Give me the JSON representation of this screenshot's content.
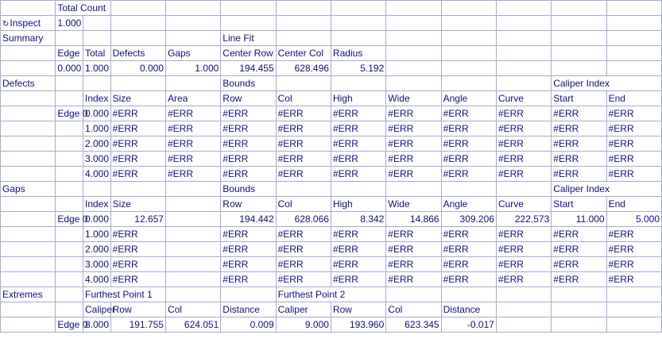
{
  "colors": {
    "text": "#10107a",
    "grid": "#a9a9d2"
  },
  "inspect_icon": "refresh-icon",
  "rows": [
    [
      "",
      "Total Count",
      "",
      "",
      "",
      "",
      "",
      "",
      "",
      "",
      "",
      "",
      ""
    ],
    [
      "Inspect",
      "1.000",
      "",
      "",
      "",
      "",
      "",
      "",
      "",
      "",
      "",
      "",
      ""
    ],
    [
      "Summary",
      "",
      "",
      "",
      "",
      "Line Fit",
      "",
      "",
      "",
      "",
      "",
      "",
      ""
    ],
    [
      "",
      "Edge",
      "Total",
      "Defects",
      "Gaps",
      "Center Row",
      "Center Col",
      "Radius",
      "",
      "",
      "",
      "",
      ""
    ],
    [
      "",
      "0.000",
      "1.000",
      "0.000",
      "1.000",
      "194.455",
      "628.496",
      "5.192",
      "",
      "",
      "",
      "",
      ""
    ],
    [
      "Defects",
      "",
      "",
      "",
      "",
      "Bounds",
      "",
      "",
      "",
      "",
      "",
      "Caliper Index",
      ""
    ],
    [
      "",
      "",
      "Index",
      "Size",
      "Area",
      "Row",
      "Col",
      "High",
      "Wide",
      "Angle",
      "Curve",
      "Start",
      "End"
    ],
    [
      "",
      "Edge 0",
      "0.000",
      "#ERR",
      "#ERR",
      "#ERR",
      "#ERR",
      "#ERR",
      "#ERR",
      "#ERR",
      "#ERR",
      "#ERR",
      "#ERR"
    ],
    [
      "",
      "",
      "1.000",
      "#ERR",
      "#ERR",
      "#ERR",
      "#ERR",
      "#ERR",
      "#ERR",
      "#ERR",
      "#ERR",
      "#ERR",
      "#ERR"
    ],
    [
      "",
      "",
      "2.000",
      "#ERR",
      "#ERR",
      "#ERR",
      "#ERR",
      "#ERR",
      "#ERR",
      "#ERR",
      "#ERR",
      "#ERR",
      "#ERR"
    ],
    [
      "",
      "",
      "3.000",
      "#ERR",
      "#ERR",
      "#ERR",
      "#ERR",
      "#ERR",
      "#ERR",
      "#ERR",
      "#ERR",
      "#ERR",
      "#ERR"
    ],
    [
      "",
      "",
      "4.000",
      "#ERR",
      "#ERR",
      "#ERR",
      "#ERR",
      "#ERR",
      "#ERR",
      "#ERR",
      "#ERR",
      "#ERR",
      "#ERR"
    ],
    [
      "Gaps",
      "",
      "",
      "",
      "",
      "Bounds",
      "",
      "",
      "",
      "",
      "",
      "Caliper Index",
      ""
    ],
    [
      "",
      "",
      "Index",
      "Size",
      "",
      "Row",
      "Col",
      "High",
      "Wide",
      "Angle",
      "Curve",
      "Start",
      "End"
    ],
    [
      "",
      "Edge 0",
      "0.000",
      "12.657",
      "",
      "194.442",
      "628.066",
      "8.342",
      "14.866",
      "309.206",
      "222.573",
      "11.000",
      "5.000"
    ],
    [
      "",
      "",
      "1.000",
      "#ERR",
      "",
      "#ERR",
      "#ERR",
      "#ERR",
      "#ERR",
      "#ERR",
      "#ERR",
      "#ERR",
      "#ERR"
    ],
    [
      "",
      "",
      "2.000",
      "#ERR",
      "",
      "#ERR",
      "#ERR",
      "#ERR",
      "#ERR",
      "#ERR",
      "#ERR",
      "#ERR",
      "#ERR"
    ],
    [
      "",
      "",
      "3.000",
      "#ERR",
      "",
      "#ERR",
      "#ERR",
      "#ERR",
      "#ERR",
      "#ERR",
      "#ERR",
      "#ERR",
      "#ERR"
    ],
    [
      "",
      "",
      "4.000",
      "#ERR",
      "",
      "#ERR",
      "#ERR",
      "#ERR",
      "#ERR",
      "#ERR",
      "#ERR",
      "#ERR",
      "#ERR"
    ],
    [
      "Extremes",
      "",
      "Furthest Point 1",
      "",
      "",
      "",
      "Furthest Point 2",
      "",
      "",
      "",
      "",
      "",
      ""
    ],
    [
      "",
      "",
      "Caliper",
      "Row",
      "Col",
      "Distance",
      "Caliper",
      "Row",
      "Col",
      "Distance",
      "",
      "",
      ""
    ],
    [
      "",
      "Edge 0",
      "8.000",
      "191.755",
      "624.051",
      "0.009",
      "9.000",
      "193.960",
      "623.345",
      "-0.017",
      "",
      "",
      ""
    ]
  ]
}
